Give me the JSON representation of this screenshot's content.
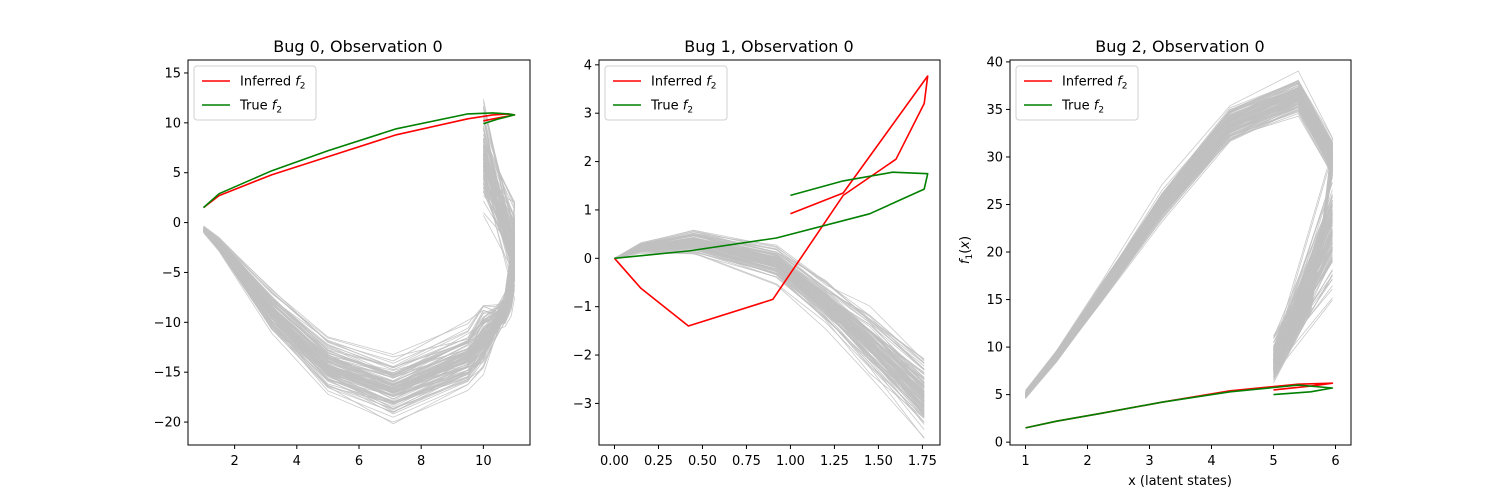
{
  "figure": {
    "background": "#ffffff",
    "sample_color": "#bfbfbf",
    "inferred_color": "#ff0000",
    "true_color": "#008000"
  },
  "chart_data": [
    {
      "type": "line",
      "title": "Bug 0, Observation 0",
      "xlabel": "",
      "ylabel": "",
      "xlim": [
        0.5,
        11.5
      ],
      "ylim": [
        -22.3,
        16.3
      ],
      "xticks": [
        2,
        4,
        6,
        8,
        10
      ],
      "xtick_labels": [
        "2",
        "4",
        "6",
        "8",
        "10"
      ],
      "yticks": [
        -20,
        -15,
        -10,
        -5,
        0,
        5,
        10,
        15
      ],
      "ytick_labels": [
        "−20",
        "−15",
        "−10",
        "−5",
        "0",
        "5",
        "10",
        "15"
      ],
      "legend": {
        "location": "upper-left",
        "entries": [
          {
            "label": "Inferred",
            "sub": "2",
            "color": "#ff0000"
          },
          {
            "label": "True",
            "sub": "2",
            "color": "#008000"
          }
        ]
      },
      "sample_curves": {
        "count": 120,
        "x": [
          1,
          1.5,
          3.2,
          5,
          7.1,
          9.5,
          10
        ],
        "y_mean": [
          -0.7,
          -2.2,
          -9,
          -14.3,
          -16.7,
          -13.5,
          -11.5
        ],
        "y_spread": [
          0.15,
          0.3,
          1.0,
          1.3,
          1.5,
          1.5,
          1.6
        ],
        "return": {
          "x_tip": [
            10.7,
            10.9,
            11.0
          ],
          "y_start_mean": 7,
          "y_start_spread": 4,
          "y_tip_mean": -3.5,
          "y_tip_spread": 3.5
        }
      },
      "series": [
        {
          "name": "Inferred",
          "color": "#ff0000",
          "x": [
            1,
            1.5,
            3.2,
            5,
            7.2,
            9.5,
            10.3,
            10.8,
            11,
            10.5,
            10
          ],
          "y": [
            1.5,
            2.7,
            4.8,
            6.6,
            8.8,
            10.4,
            10.8,
            10.9,
            10.8,
            10.5,
            10.2
          ]
        },
        {
          "name": "True",
          "color": "#008000",
          "x": [
            1,
            1.5,
            3.2,
            5,
            7.2,
            9.5,
            10.3,
            10.8,
            11,
            10.5,
            10
          ],
          "y": [
            1.5,
            2.9,
            5.2,
            7.2,
            9.4,
            10.9,
            11,
            10.9,
            10.8,
            10.4,
            9.9
          ]
        }
      ]
    },
    {
      "type": "line",
      "title": "Bug 1, Observation 0",
      "xlabel": "",
      "ylabel": "",
      "xlim": [
        -0.088,
        1.85
      ],
      "ylim": [
        -3.86,
        4.1
      ],
      "xticks": [
        0,
        0.25,
        0.5,
        0.75,
        1.0,
        1.25,
        1.5,
        1.75
      ],
      "xtick_labels": [
        "0.00",
        "0.25",
        "0.50",
        "0.75",
        "1.00",
        "1.25",
        "1.50",
        "1.75"
      ],
      "yticks": [
        -3,
        -2,
        -1,
        0,
        1,
        2,
        3,
        4
      ],
      "ytick_labels": [
        "−3",
        "−2",
        "−1",
        "0",
        "1",
        "2",
        "3",
        "4"
      ],
      "legend": {
        "location": "upper-left",
        "entries": [
          {
            "label": "Inferred",
            "sub": "2",
            "color": "#ff0000"
          },
          {
            "label": "True",
            "sub": "2",
            "color": "#008000"
          }
        ]
      },
      "sample_curves": {
        "count": 120,
        "x": [
          0,
          0.15,
          0.45,
          0.92,
          1.2,
          1.45,
          1.76
        ],
        "y_mean": [
          0,
          0.22,
          0.35,
          -0.1,
          -0.9,
          -1.7,
          -2.8
        ],
        "y_spread": [
          0,
          0.05,
          0.12,
          0.18,
          0.22,
          0.3,
          0.4
        ]
      },
      "series": [
        {
          "name": "Inferred",
          "color": "#ff0000",
          "x": [
            0,
            0.15,
            0.42,
            0.9,
            1.3,
            1.6,
            1.76,
            1.78,
            1.3,
            1.0
          ],
          "y": [
            0,
            -0.62,
            -1.4,
            -0.85,
            1.3,
            2.05,
            3.2,
            3.77,
            1.35,
            0.92
          ]
        },
        {
          "name": "True",
          "color": "#008000",
          "x": [
            0,
            0.42,
            0.92,
            1.45,
            1.76,
            1.78,
            1.58,
            1.3,
            1.0
          ],
          "y": [
            0,
            0.15,
            0.42,
            0.92,
            1.43,
            1.75,
            1.78,
            1.6,
            1.3
          ]
        }
      ]
    },
    {
      "type": "line",
      "title": "Bug 2, Observation 0",
      "xlabel": "x (latent states)",
      "ylabel": "f_1(x)",
      "xlim": [
        0.75,
        6.25
      ],
      "ylim": [
        -0.3,
        40.2
      ],
      "xticks": [
        1,
        2,
        3,
        4,
        5,
        6
      ],
      "xtick_labels": [
        "1",
        "2",
        "3",
        "4",
        "5",
        "6"
      ],
      "yticks": [
        0,
        5,
        10,
        15,
        20,
        25,
        30,
        35,
        40
      ],
      "ytick_labels": [
        "0",
        "5",
        "10",
        "15",
        "20",
        "25",
        "30",
        "35",
        "40"
      ],
      "legend": {
        "location": "upper-left",
        "entries": [
          {
            "label": "Inferred",
            "sub": "2",
            "color": "#ff0000"
          },
          {
            "label": "True",
            "sub": "2",
            "color": "#008000"
          }
        ]
      },
      "sample_curves": {
        "count": 120,
        "x": [
          1,
          1.5,
          2.2,
          3.2,
          4.3,
          5.4,
          5.95
        ],
        "y_mean": [
          5,
          9,
          15.5,
          25,
          33.5,
          36.5,
          30
        ],
        "y_spread": [
          0.2,
          0.3,
          0.5,
          0.8,
          1.0,
          1.0,
          1.0
        ],
        "return": {
          "x_tip": [
            5.8,
            5.6,
            5.0
          ],
          "y_start_mean": 22,
          "y_start_spread": 5,
          "y_tip_mean": 9,
          "y_tip_spread": 1.7
        }
      },
      "series": [
        {
          "name": "Inferred",
          "color": "#ff0000",
          "x": [
            1,
            1.5,
            2.2,
            3.2,
            4.3,
            5.4,
            5.95,
            5.6,
            5.0
          ],
          "y": [
            1.5,
            2.2,
            3.0,
            4.2,
            5.4,
            6.1,
            6.2,
            5.9,
            5.5
          ]
        },
        {
          "name": "True",
          "color": "#008000",
          "x": [
            1,
            1.5,
            2.2,
            3.2,
            4.3,
            5.4,
            5.95,
            5.6,
            5.0
          ],
          "y": [
            1.5,
            2.2,
            3.0,
            4.2,
            5.3,
            6.0,
            5.7,
            5.3,
            5.0
          ]
        }
      ]
    }
  ]
}
